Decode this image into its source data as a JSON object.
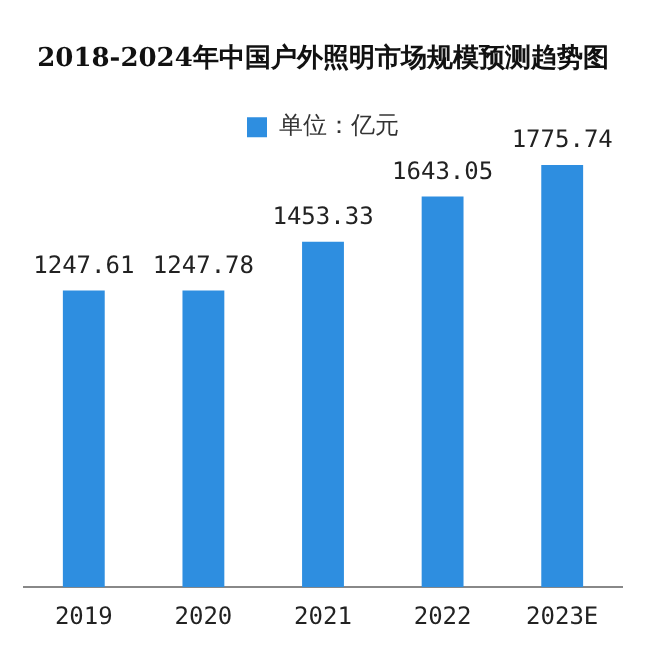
{
  "chart_data": {
    "type": "bar",
    "title": "2018-2024年中国户外照明市场规模预测趋势图",
    "categories": [
      "2019",
      "2020",
      "2021",
      "2022",
      "2023E"
    ],
    "series": [
      {
        "name": "单位：亿元",
        "color": "#2e8ee0",
        "values": [
          1247.61,
          1247.78,
          1453.33,
          1643.05,
          1775.74
        ]
      }
    ],
    "data_labels": true,
    "legend": "top",
    "grid": false,
    "tick_labels": "x"
  }
}
